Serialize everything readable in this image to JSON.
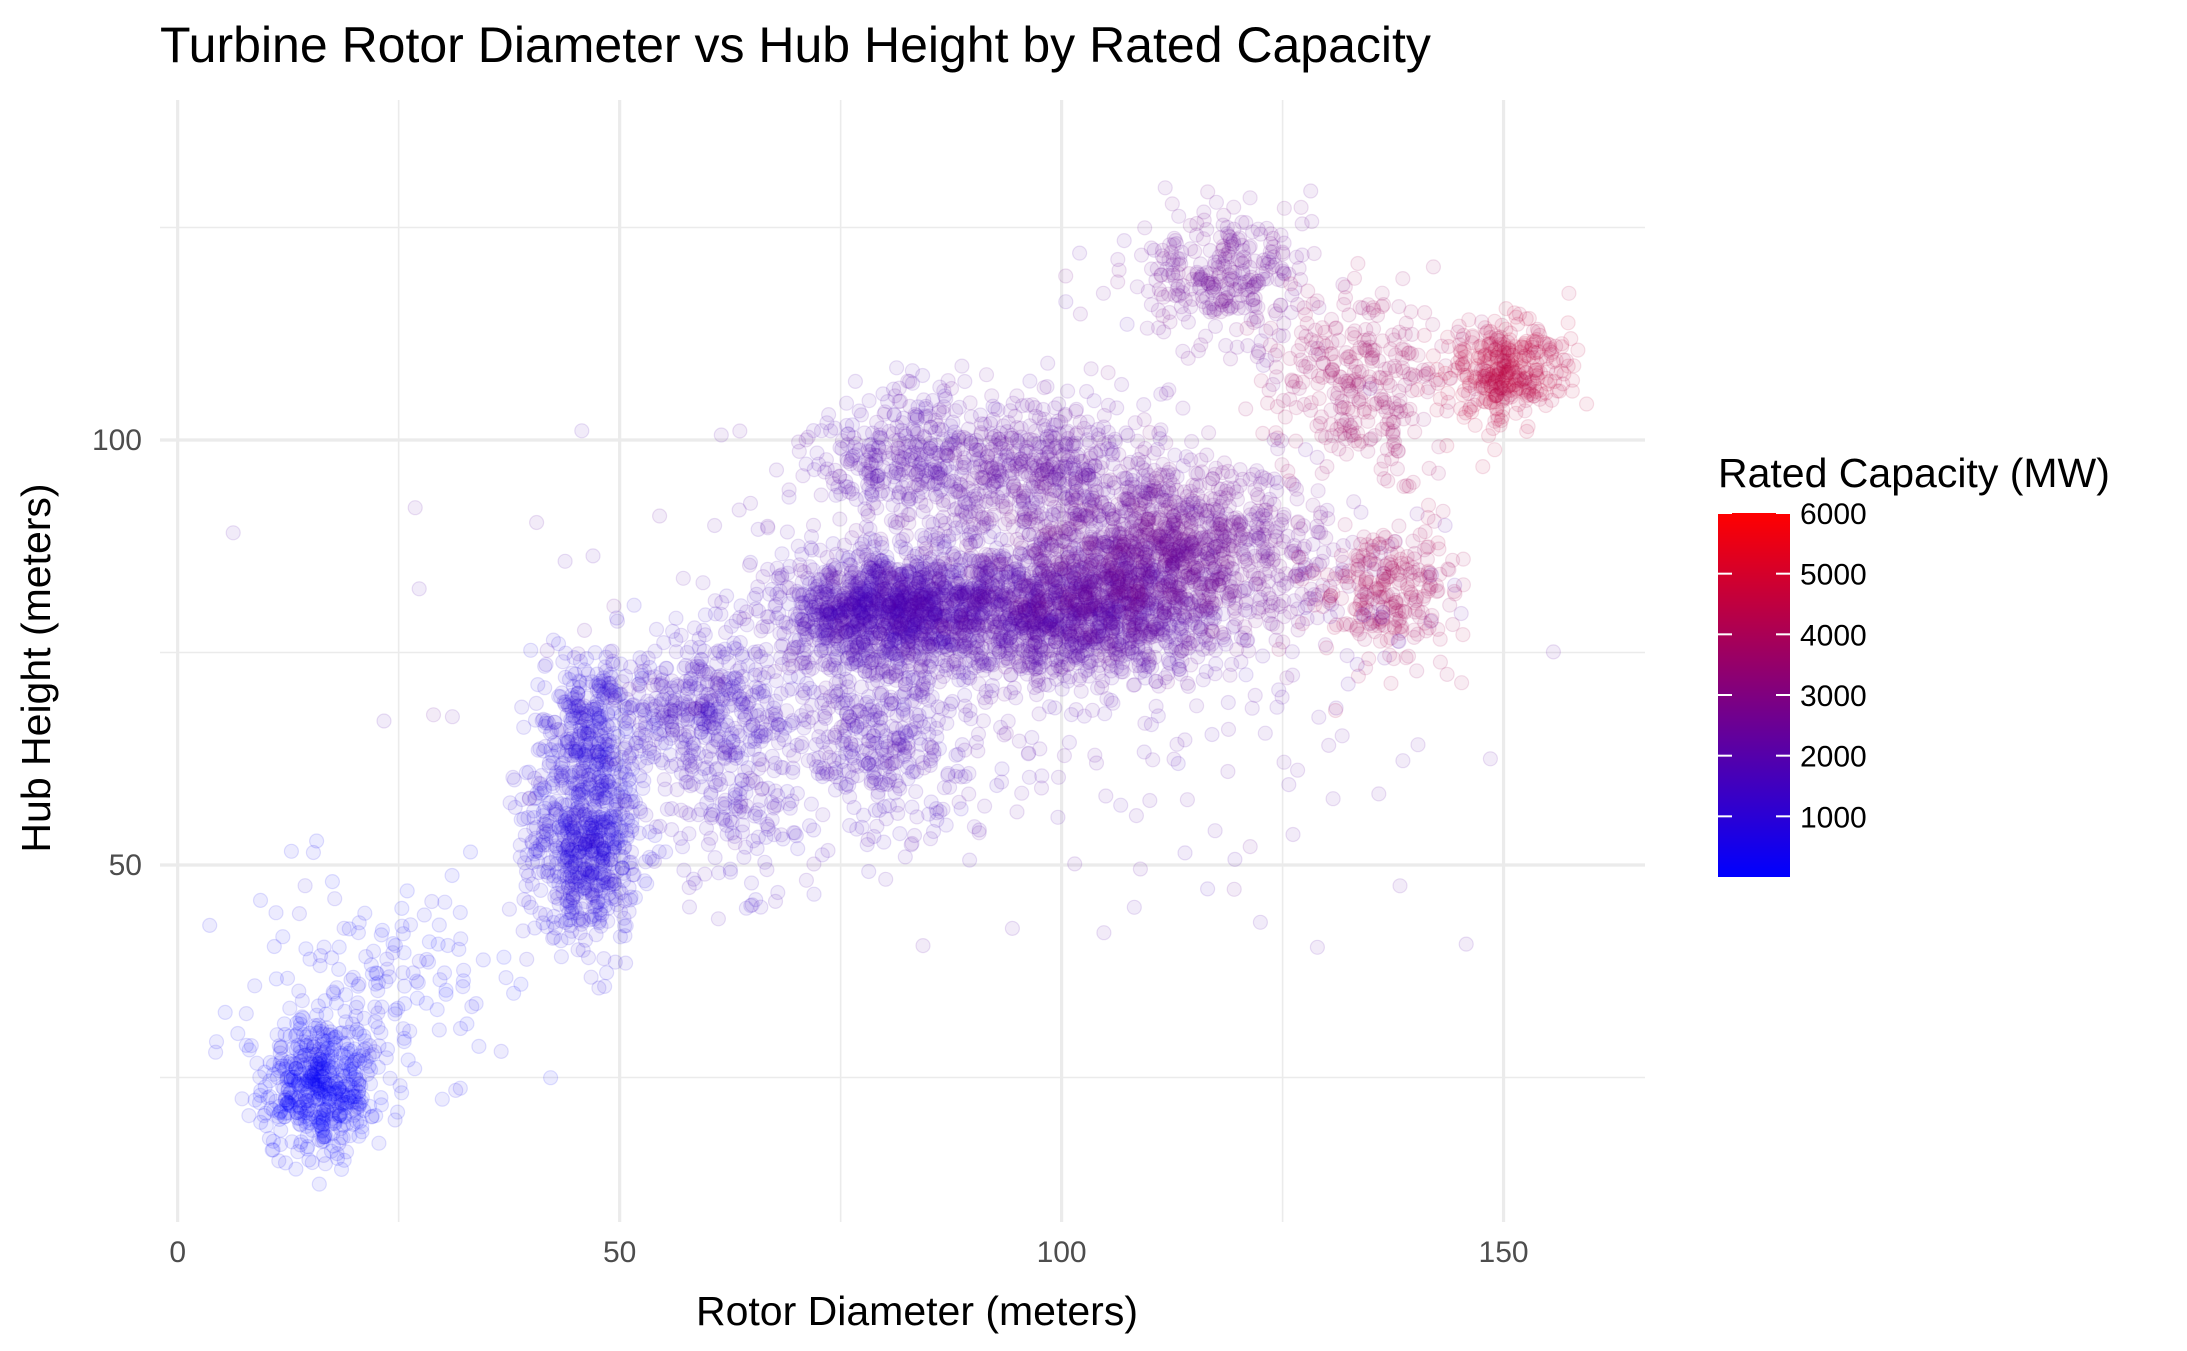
{
  "chart_data": {
    "type": "scatter",
    "title": "Turbine Rotor Diameter vs Hub Height by Rated Capacity",
    "xlabel": "Rotor Diameter (meters)",
    "ylabel": "Hub Height (meters)",
    "xlim": [
      -2,
      166
    ],
    "ylim": [
      8,
      140
    ],
    "x_ticks": [
      0,
      50,
      100,
      150
    ],
    "x_tick_labels": [
      "0",
      "50",
      "100",
      "150"
    ],
    "y_ticks": [
      50,
      100
    ],
    "y_tick_labels": [
      "50",
      "100"
    ],
    "grid": true,
    "point_opacity": 0.08,
    "colorbar": {
      "title": "Rated Capacity (MW)",
      "min": 0,
      "max": 6000,
      "ticks": [
        1000,
        2000,
        3000,
        4000,
        5000,
        6000
      ],
      "tick_labels": [
        "1000",
        "2000",
        "3000",
        "4000",
        "5000",
        "6000"
      ],
      "low_color": "#0000ff",
      "high_color": "#ff0000",
      "placement": "right"
    },
    "clusters": [
      {
        "x": 16,
        "y": 24,
        "sx": 3.2,
        "sy": 4.2,
        "capacity": 100,
        "n": 500
      },
      {
        "x": 24,
        "y": 36,
        "sx": 8,
        "sy": 7,
        "capacity": 250,
        "n": 150
      },
      {
        "x": 46,
        "y": 52,
        "sx": 3.2,
        "sy": 5.5,
        "capacity": 800,
        "n": 600
      },
      {
        "x": 47,
        "y": 66,
        "sx": 3.5,
        "sy": 5,
        "capacity": 850,
        "n": 350
      },
      {
        "x": 60,
        "y": 68,
        "sx": 5,
        "sy": 4.5,
        "capacity": 1400,
        "n": 400
      },
      {
        "x": 63,
        "y": 57,
        "sx": 5,
        "sy": 4.5,
        "capacity": 1500,
        "n": 150
      },
      {
        "x": 80,
        "y": 65,
        "sx": 5,
        "sy": 5,
        "capacity": 1650,
        "n": 350
      },
      {
        "x": 80,
        "y": 80,
        "sx": 6,
        "sy": 3.5,
        "capacity": 1700,
        "n": 1200
      },
      {
        "x": 100,
        "y": 80,
        "sx": 9,
        "sy": 4,
        "capacity": 2000,
        "n": 1500
      },
      {
        "x": 112,
        "y": 87,
        "sx": 9,
        "sy": 5,
        "capacity": 2500,
        "n": 1200
      },
      {
        "x": 97,
        "y": 97,
        "sx": 7,
        "sy": 4,
        "capacity": 2200,
        "n": 500
      },
      {
        "x": 82,
        "y": 98,
        "sx": 5,
        "sy": 4,
        "capacity": 1900,
        "n": 300
      },
      {
        "x": 118,
        "y": 119,
        "sx": 5,
        "sy": 4,
        "capacity": 2500,
        "n": 300
      },
      {
        "x": 134,
        "y": 107,
        "sx": 5,
        "sy": 5,
        "capacity": 3700,
        "n": 300
      },
      {
        "x": 137,
        "y": 82,
        "sx": 4,
        "sy": 4,
        "capacity": 3900,
        "n": 250
      },
      {
        "x": 150,
        "y": 108,
        "sx": 3.5,
        "sy": 3,
        "capacity": 4400,
        "n": 350
      },
      {
        "x": 95,
        "y": 75,
        "sx": 25,
        "sy": 14,
        "capacity": 2000,
        "n": 400
      }
    ]
  }
}
